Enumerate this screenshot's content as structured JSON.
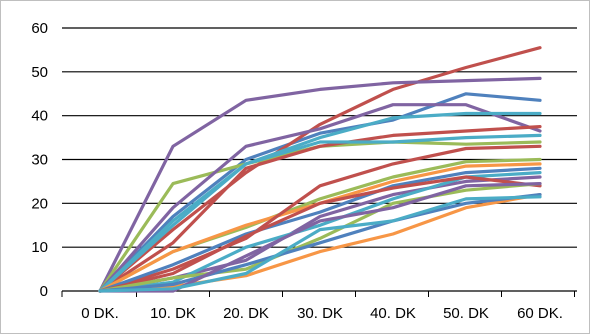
{
  "chart_data": {
    "type": "line",
    "title": "",
    "xlabel": "",
    "ylabel": "",
    "ylim": [
      0,
      60
    ],
    "yticks": [
      0,
      10,
      20,
      30,
      40,
      50,
      60
    ],
    "grid": true,
    "legend": "none",
    "categories": [
      "0 DK.",
      "10. DK",
      "20. DK",
      "30. DK",
      "40. DK",
      "50. DK",
      "60 DK."
    ],
    "series": [
      {
        "color": "#4F81BD",
        "values": [
          0,
          17,
          30,
          36,
          39,
          45,
          43.5
        ]
      },
      {
        "color": "#C0504D",
        "values": [
          0,
          14,
          27,
          38,
          46,
          51,
          55.5
        ]
      },
      {
        "color": "#8064A2",
        "values": [
          0,
          33,
          43.5,
          46,
          47.5,
          48,
          48.5
        ]
      },
      {
        "color": "#9BBB59",
        "values": [
          0,
          24.5,
          29,
          33,
          34,
          33.5,
          34
        ]
      },
      {
        "color": "#8064A2",
        "values": [
          0,
          19,
          33,
          37,
          42.5,
          42.5,
          36.5
        ]
      },
      {
        "color": "#4BACC6",
        "values": [
          0,
          16,
          29,
          35,
          39.5,
          40.5,
          40.5
        ]
      },
      {
        "color": "#C0504D",
        "values": [
          0,
          11,
          28,
          33,
          35.5,
          36.5,
          37.5
        ]
      },
      {
        "color": "#4BACC6",
        "values": [
          0,
          15,
          29,
          34,
          34,
          35,
          35.5
        ]
      },
      {
        "color": "#9BBB59",
        "values": [
          0,
          9,
          14.5,
          21,
          26,
          29.5,
          30
        ]
      },
      {
        "color": "#F79646",
        "values": [
          0,
          9,
          15,
          20,
          25,
          28.5,
          29
        ]
      },
      {
        "color": "#C0504D",
        "values": [
          0,
          5,
          12,
          24,
          29,
          32.5,
          33
        ]
      },
      {
        "color": "#4F81BD",
        "values": [
          0,
          6,
          13,
          18,
          24,
          27,
          28
        ]
      },
      {
        "color": "#8064A2",
        "values": [
          0,
          3,
          7,
          17,
          22,
          25,
          26
        ]
      },
      {
        "color": "#4BACC6",
        "values": [
          0,
          2,
          10,
          15,
          21,
          26,
          27
        ]
      },
      {
        "color": "#C0504D",
        "values": [
          0,
          4,
          12.5,
          20,
          23.5,
          26,
          24
        ]
      },
      {
        "color": "#9BBB59",
        "values": [
          0,
          3,
          5,
          12,
          20,
          23,
          24.5
        ]
      },
      {
        "color": "#F79646",
        "values": [
          0,
          1,
          3.5,
          9,
          13,
          19,
          22
        ]
      },
      {
        "color": "#4F81BD",
        "values": [
          0,
          1.5,
          6,
          11,
          16,
          20,
          22
        ]
      },
      {
        "color": "#8064A2",
        "values": [
          0,
          0,
          8,
          16,
          19,
          24,
          24.5
        ]
      },
      {
        "color": "#4BACC6",
        "values": [
          0,
          0.5,
          4,
          14,
          16,
          21,
          21.5
        ]
      }
    ]
  }
}
